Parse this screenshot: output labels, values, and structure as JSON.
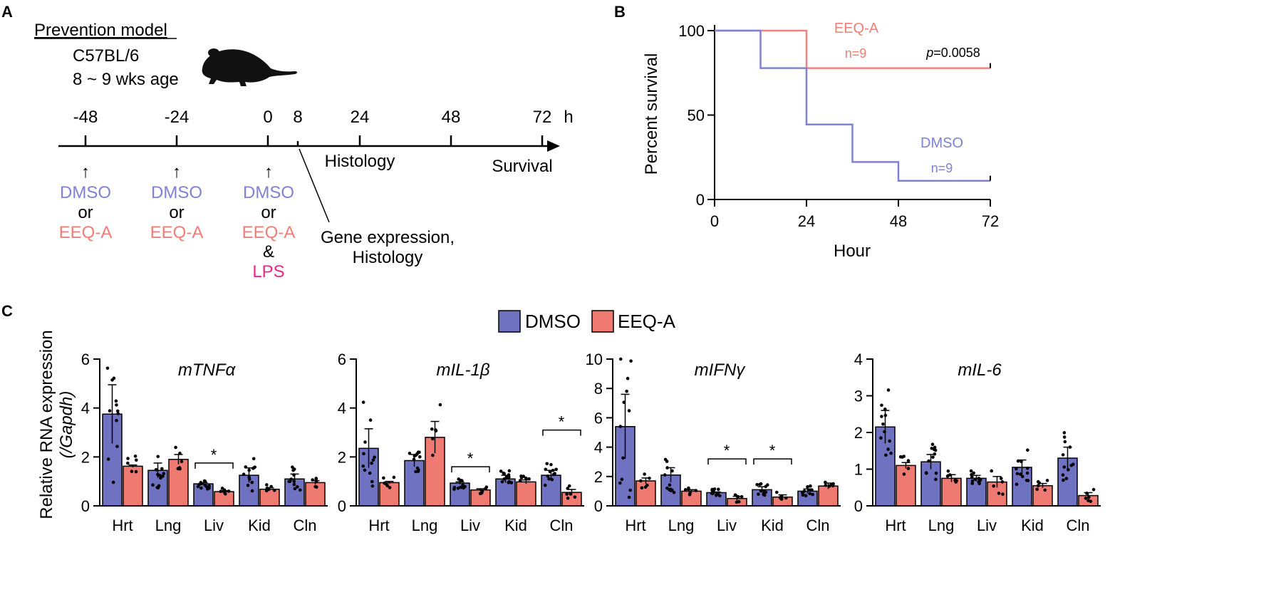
{
  "panels": {
    "a": "A",
    "b": "B",
    "c": "C"
  },
  "panel_a": {
    "model_title": "Prevention model",
    "strain": "C57BL/6",
    "age": "8 ~ 9 wks age",
    "time_unit": "h",
    "timepoints": [
      "-48",
      "-24",
      "0",
      "8",
      "24",
      "48",
      "72"
    ],
    "arrow_glyph": "↑",
    "dmso": "DMSO",
    "or": "or",
    "eeqa": "EEQ-A",
    "amp": "&",
    "lps": "LPS",
    "histology": "Histology",
    "survival": "Survival",
    "gene_expr_line1": "Gene expression,",
    "gene_expr_line2": "Histology"
  },
  "colors": {
    "dmso_line": "#7f82d2",
    "eeqa_line": "#f08282",
    "dmso_bar": "#6f72c0",
    "eeqa_bar": "#ef7a72",
    "dmso_text": "#7f82d2",
    "eeqa_text": "#f07d76",
    "lps_text": "#e8278a",
    "axis": "#000000"
  },
  "chart_data": [
    {
      "type": "line",
      "subtype": "kaplan-meier",
      "xlabel": "Hour",
      "ylabel": "Percent survival",
      "xlim": [
        0,
        72
      ],
      "ylim": [
        0,
        100
      ],
      "xticks": [
        0,
        24,
        48,
        72
      ],
      "yticks": [
        0,
        50,
        100
      ],
      "p_prefix": "p",
      "p_value": "=0.0058",
      "series": [
        {
          "name": "EEQ-A",
          "n_label": "n=9",
          "x": [
            0,
            24,
            24,
            72
          ],
          "y": [
            100,
            100,
            77.8,
            77.8
          ]
        },
        {
          "name": "DMSO",
          "n_label": "n=9",
          "x": [
            0,
            12,
            12,
            24,
            24,
            36,
            36,
            48,
            48,
            72
          ],
          "y": [
            100,
            100,
            77.8,
            77.8,
            44.4,
            44.4,
            22.2,
            22.2,
            11.1,
            11.1
          ]
        }
      ]
    },
    {
      "type": "bar",
      "title": "mTNFα",
      "ylim": [
        0,
        6
      ],
      "yticks": [
        0,
        2,
        4,
        6
      ],
      "categories": [
        "Hrt",
        "Lng",
        "Liv",
        "Kid",
        "Cln"
      ],
      "series": [
        {
          "name": "DMSO",
          "values": [
            3.75,
            1.45,
            0.9,
            1.25,
            1.1
          ],
          "errors": [
            1.2,
            0.3,
            0.05,
            0.3,
            0.2
          ]
        },
        {
          "name": "EEQ-A",
          "values": [
            1.62,
            1.9,
            0.58,
            0.68,
            0.95
          ],
          "errors": [
            0.05,
            0.2,
            0.04,
            0.06,
            0.08
          ]
        }
      ],
      "significance": [
        {
          "category": "Liv",
          "label": "*",
          "y": 1.75
        }
      ]
    },
    {
      "type": "bar",
      "title": "mIL-1β",
      "ylim": [
        0,
        6
      ],
      "yticks": [
        0,
        2,
        4,
        6
      ],
      "categories": [
        "Hrt",
        "Lng",
        "Liv",
        "Kid",
        "Cln"
      ],
      "series": [
        {
          "name": "DMSO",
          "values": [
            2.35,
            1.85,
            0.93,
            1.1,
            1.25
          ],
          "errors": [
            0.8,
            0.25,
            0.05,
            0.15,
            0.2
          ]
        },
        {
          "name": "EEQ-A",
          "values": [
            0.95,
            2.8,
            0.65,
            0.98,
            0.55
          ],
          "errors": [
            0.05,
            0.65,
            0.05,
            0.08,
            0.12
          ]
        }
      ],
      "significance": [
        {
          "category": "Liv",
          "label": "*",
          "y": 1.6
        },
        {
          "category": "Cln",
          "label": "*",
          "y": 3.1
        }
      ]
    },
    {
      "type": "bar",
      "title": "mIFNγ",
      "ylim": [
        0,
        10
      ],
      "yticks": [
        0,
        2,
        4,
        6,
        8,
        10
      ],
      "categories": [
        "Hrt",
        "Lng",
        "Liv",
        "Kid",
        "Cln"
      ],
      "series": [
        {
          "name": "DMSO",
          "values": [
            5.4,
            2.1,
            0.9,
            1.1,
            1.0
          ],
          "errors": [
            2.2,
            0.5,
            0.05,
            0.2,
            0.15
          ]
        },
        {
          "name": "EEQ-A",
          "values": [
            1.7,
            1.0,
            0.5,
            0.6,
            1.35
          ],
          "errors": [
            0.2,
            0.1,
            0.15,
            0.15,
            0.2
          ]
        }
      ],
      "significance": [
        {
          "category": "Liv",
          "label": "*",
          "y": 3.2
        },
        {
          "category": "Kid",
          "label": "*",
          "y": 3.2
        }
      ]
    },
    {
      "type": "bar",
      "title": "mIL-6",
      "ylim": [
        0,
        4
      ],
      "yticks": [
        0,
        1,
        2,
        3,
        4
      ],
      "categories": [
        "Hrt",
        "Lng",
        "Liv",
        "Kid",
        "Cln"
      ],
      "series": [
        {
          "name": "DMSO",
          "values": [
            2.15,
            1.2,
            0.75,
            1.05,
            1.3
          ],
          "errors": [
            0.45,
            0.2,
            0.08,
            0.2,
            0.3
          ]
        },
        {
          "name": "EEQ-A",
          "values": [
            1.1,
            0.75,
            0.65,
            0.55,
            0.28
          ],
          "errors": [
            0.08,
            0.1,
            0.15,
            0.06,
            0.08
          ]
        }
      ],
      "significance": []
    }
  ],
  "panel_c": {
    "ylabel_line1": "Relative RNA expression",
    "ylabel_line2": "(/Gapdh)",
    "legend": [
      "DMSO",
      "EEQ-A"
    ]
  }
}
